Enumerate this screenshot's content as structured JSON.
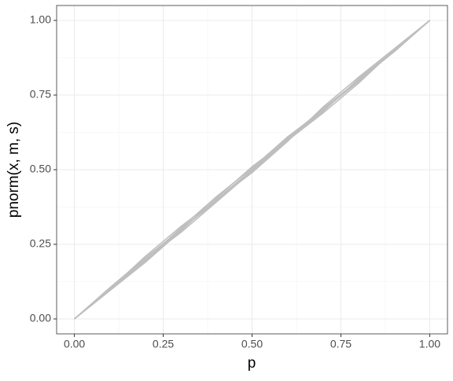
{
  "chart_data": {
    "type": "line",
    "x_label": "p",
    "y_label": "pnorm(x, m, s)",
    "x": [
      0,
      0.1,
      0.2,
      0.3,
      0.4,
      0.5,
      0.6,
      0.7,
      0.8,
      0.9,
      1
    ],
    "series": [
      {
        "color": "#bebebe",
        "values": [
          0,
          0.105,
          0.205,
          0.3,
          0.395,
          0.5,
          0.605,
          0.705,
          0.8,
          0.895,
          1
        ]
      },
      {
        "color": "#bebebe",
        "values": [
          0,
          0.095,
          0.19,
          0.295,
          0.405,
          0.51,
          0.6,
          0.695,
          0.805,
          0.9,
          1
        ]
      },
      {
        "color": "#bebebe",
        "values": [
          0,
          0.1,
          0.21,
          0.31,
          0.4,
          0.49,
          0.595,
          0.71,
          0.81,
          0.905,
          1
        ]
      },
      {
        "color": "#bebebe",
        "values": [
          0,
          0.098,
          0.198,
          0.305,
          0.41,
          0.505,
          0.61,
          0.7,
          0.795,
          0.898,
          1
        ]
      },
      {
        "color": "#bebebe",
        "values": [
          0,
          0.102,
          0.2,
          0.29,
          0.392,
          0.495,
          0.598,
          0.69,
          0.79,
          0.902,
          1
        ]
      },
      {
        "color": "#bebebe",
        "values": [
          0,
          0.1,
          0.195,
          0.3,
          0.4,
          0.5,
          0.6,
          0.7,
          0.8,
          0.9,
          1
        ]
      }
    ],
    "xlim": [
      -0.05,
      1.05
    ],
    "ylim": [
      -0.05,
      1.05
    ],
    "xticks": [
      {
        "value": 0,
        "label": "0.00"
      },
      {
        "value": 0.25,
        "label": "0.25"
      },
      {
        "value": 0.5,
        "label": "0.50"
      },
      {
        "value": 0.75,
        "label": "0.75"
      },
      {
        "value": 1,
        "label": "1.00"
      }
    ],
    "yticks": [
      {
        "value": 0,
        "label": "0.00"
      },
      {
        "value": 0.25,
        "label": "0.25"
      },
      {
        "value": 0.5,
        "label": "0.50"
      },
      {
        "value": 0.75,
        "label": "0.75"
      },
      {
        "value": 1,
        "label": "1.00"
      }
    ],
    "minor_ticks": [
      0.125,
      0.375,
      0.625,
      0.875
    ],
    "grid": true
  }
}
